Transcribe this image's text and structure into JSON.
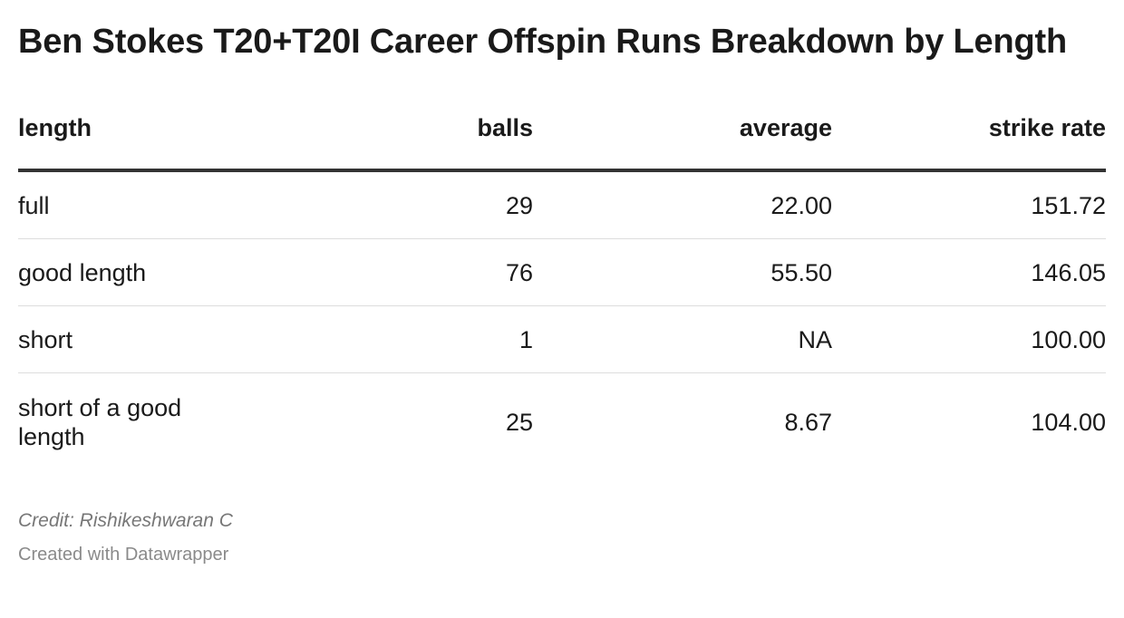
{
  "title": "Ben Stokes T20+T20I Career Offspin Runs Breakdown by Length",
  "chart_data": {
    "type": "table",
    "title": "Ben Stokes T20+T20I Career Offspin Runs Breakdown by Length",
    "columns": [
      "length",
      "balls",
      "average",
      "strike rate"
    ],
    "rows": [
      {
        "length": "full",
        "balls": "29",
        "average": "22.00",
        "strike_rate": "151.72"
      },
      {
        "length": "good length",
        "balls": "76",
        "average": "55.50",
        "strike_rate": "146.05"
      },
      {
        "length": "short",
        "balls": "1",
        "average": "NA",
        "strike_rate": "100.00"
      },
      {
        "length": "short of a good length",
        "balls": "25",
        "average": "8.67",
        "strike_rate": "104.00"
      }
    ]
  },
  "footer": {
    "credit": "Credit: Rishikeshwaran C",
    "created_with": "Created with Datawrapper"
  },
  "colors": {
    "text": "#1a1a1a",
    "header_rule": "#333333",
    "row_rule": "#dddddd",
    "muted": "#777777"
  }
}
